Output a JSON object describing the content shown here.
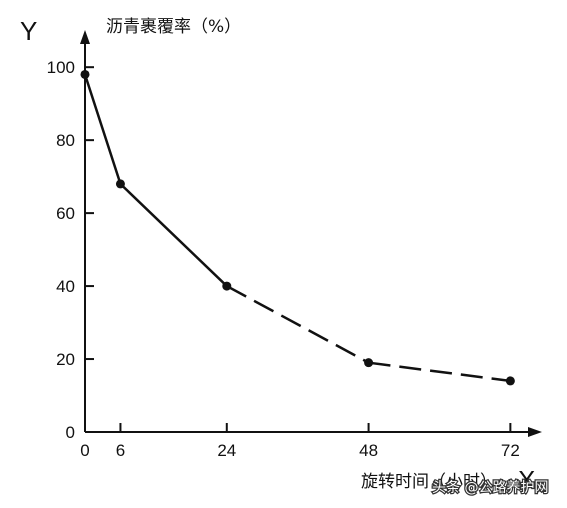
{
  "chart_data": {
    "type": "line",
    "title": "",
    "y_axis_letter": "Y",
    "x_axis_letter": "X",
    "ylabel": "沥青裹覆率（%）",
    "xlabel": "旋转时间（小时）",
    "x_ticks": [
      0,
      6,
      24,
      48,
      72
    ],
    "y_ticks": [
      0,
      20,
      40,
      60,
      80,
      100
    ],
    "xlim": [
      0,
      76
    ],
    "ylim": [
      0,
      108
    ],
    "grid": false,
    "series": [
      {
        "x": [
          0,
          6,
          24,
          48,
          72
        ],
        "y": [
          98,
          68,
          40,
          19,
          14
        ],
        "segment_styles": [
          "solid",
          "solid",
          "dashed",
          "dashed"
        ],
        "marker": "circle",
        "color": "#111111"
      }
    ]
  },
  "watermark": {
    "text": "头条 @公路养护网",
    "color": "#ffffff"
  }
}
